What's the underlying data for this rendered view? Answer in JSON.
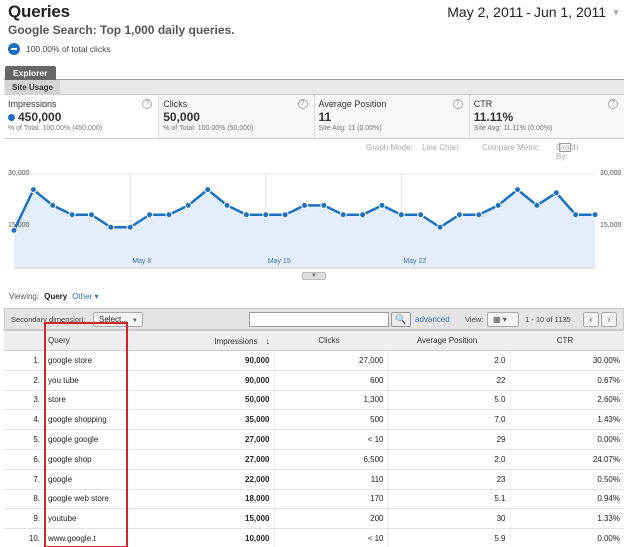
{
  "header": {
    "title": "Queries",
    "subtitle": "Google Search: Top 1,000 daily queries.",
    "percent_text": "100.00% of total clicks",
    "date_start": "May 2, 2011",
    "date_sep": "-",
    "date_end": "Jun 1, 2011",
    "date_caret": "▼"
  },
  "tabs": {
    "explorer": "Explorer",
    "site_usage": "Site Usage"
  },
  "metrics": [
    {
      "label": "Impressions",
      "value": "450,000",
      "sub": "% of Total: 100.00% (450,000)"
    },
    {
      "label": "Clicks",
      "value": "50,000",
      "sub": "% of Total: 100.00% (50,000)"
    },
    {
      "label": "Average Position",
      "value": "11",
      "sub": "Site Avg: 11 (0.00%)"
    },
    {
      "label": "CTR",
      "value": "11.11%",
      "sub": "Site Avg: 11.11% (0.00%)"
    }
  ],
  "help_glyph": "?",
  "graph_options": {
    "mode_label": "Graph Mode:",
    "mode_value": "Line Chart",
    "compare": "Compare Metric",
    "graph_by": "Graph By:"
  },
  "chart_data": {
    "type": "area",
    "series": [
      {
        "name": "Impressions",
        "values": [
          12000,
          25000,
          20000,
          17000,
          17000,
          13000,
          13000,
          17000,
          17000,
          20000,
          25000,
          20000,
          17000,
          17000,
          17000,
          20000,
          20000,
          17000,
          17000,
          20000,
          17000,
          17000,
          13000,
          17000,
          17000,
          20000,
          25000,
          20000,
          24000,
          17000,
          17000
        ]
      }
    ],
    "y_ticks": [
      "30,000",
      "15,000"
    ],
    "y_ticks_right": [
      "30,000",
      "15,000"
    ],
    "ylim": [
      0,
      30000
    ],
    "x_tick_labels": [
      "May 8",
      "May 15",
      "May 22"
    ],
    "x_tick_index": [
      6,
      13,
      20
    ],
    "color": "#1d6fc1",
    "fill": "#e3eefa",
    "grid": true
  },
  "scroll_handle": "▼",
  "viewing": {
    "label": "Viewing:",
    "current": "Query",
    "other": "Other ▾"
  },
  "toolbar": {
    "secondary_label": "Secondary dimension:",
    "select_label": "Select...",
    "select_caret": "▼",
    "search_glyph": "🔍",
    "search_placeholder": "",
    "advanced": "advanced",
    "view_label": "View:",
    "view_glyph": "▦ ▾",
    "pager_text": "1 - 10 of 1135",
    "prev": "‹",
    "next": "›"
  },
  "table": {
    "headers": {
      "query": "Query",
      "impressions": "Impressions",
      "sort": "↓",
      "clicks": "Clicks",
      "position": "Average Position",
      "ctr": "CTR"
    },
    "rows": [
      {
        "idx": "1.",
        "query": "google store",
        "impressions": "90,000",
        "clicks": "27,000",
        "position": "2.0",
        "ctr": "30.00%"
      },
      {
        "idx": "2.",
        "query": "you tube",
        "impressions": "90,000",
        "clicks": "600",
        "position": "22",
        "ctr": "0.67%"
      },
      {
        "idx": "3.",
        "query": "store",
        "impressions": "50,000",
        "clicks": "1,300",
        "position": "5.0",
        "ctr": "2.60%"
      },
      {
        "idx": "4.",
        "query": "google shopping",
        "impressions": "35,000",
        "clicks": "500",
        "position": "7.0",
        "ctr": "1.43%"
      },
      {
        "idx": "5.",
        "query": "google google",
        "impressions": "27,000",
        "clicks": "< 10",
        "position": "29",
        "ctr": "0.00%"
      },
      {
        "idx": "6.",
        "query": "google shop",
        "impressions": "27,000",
        "clicks": "6,500",
        "position": "2.0",
        "ctr": "24.07%"
      },
      {
        "idx": "7.",
        "query": "google",
        "impressions": "22,000",
        "clicks": "110",
        "position": "23",
        "ctr": "0.50%"
      },
      {
        "idx": "8.",
        "query": "google web store",
        "impressions": "18,000",
        "clicks": "170",
        "position": "5.1",
        "ctr": "0.94%"
      },
      {
        "idx": "9.",
        "query": "youtube",
        "impressions": "15,000",
        "clicks": "200",
        "position": "30",
        "ctr": "1.33%"
      },
      {
        "idx": "10.",
        "query": "www.google.t",
        "impressions": "10,000",
        "clicks": "< 10",
        "position": "5.9",
        "ctr": "0.00%"
      }
    ]
  }
}
